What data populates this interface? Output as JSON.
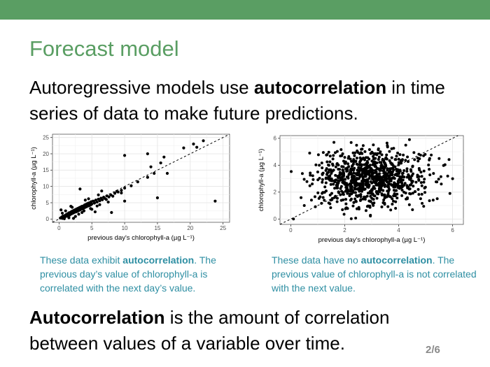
{
  "slide": {
    "title": "Forecast model",
    "intro": {
      "before": "Autoregressive models use ",
      "bold": "autocorrelation",
      "after": " in time series of data to make future predictions."
    },
    "definition": {
      "bold": "Autocorrelation",
      "rest": " is the amount of correlation between values of a variable over time."
    },
    "page_number": "2/6",
    "colors": {
      "accent": "#5a9e63",
      "caption": "#2f8fa3",
      "page_number": "#8a8a8a"
    }
  },
  "captions": {
    "left": {
      "pre": "These data exhibit ",
      "bold": "autocorrelation",
      "post": ". The previous day’s value of chlorophyll-a is correlated with the next day’s value."
    },
    "right": {
      "pre": "These data have no ",
      "bold": "autocorrelation",
      "post": ". The previous value of chlorophyll-a is not correlated with the next value."
    }
  },
  "chart_data": [
    {
      "type": "scatter",
      "xlabel": "previous day's chlorophyll-a (µg L⁻¹)",
      "ylabel": "chlorophyll-a (µg L⁻¹)",
      "xlim": [
        -1,
        26
      ],
      "ylim": [
        -1,
        26
      ],
      "xticks": [
        0,
        5,
        10,
        15,
        20,
        25
      ],
      "yticks": [
        0,
        5,
        10,
        15,
        20,
        25
      ],
      "grid": true,
      "reference_line": "y = x (dashed)",
      "points": [
        [
          0.2,
          0.3
        ],
        [
          0.4,
          0.6
        ],
        [
          0.5,
          0.2
        ],
        [
          0.6,
          0.9
        ],
        [
          0.8,
          0.5
        ],
        [
          0.9,
          1.1
        ],
        [
          1.0,
          0.8
        ],
        [
          1.1,
          1.4
        ],
        [
          1.2,
          0.9
        ],
        [
          1.3,
          1.6
        ],
        [
          1.4,
          1.1
        ],
        [
          1.5,
          1.9
        ],
        [
          1.6,
          1.2
        ],
        [
          1.7,
          2.0
        ],
        [
          1.8,
          1.5
        ],
        [
          1.9,
          2.3
        ],
        [
          2.0,
          1.7
        ],
        [
          2.1,
          2.5
        ],
        [
          2.2,
          1.9
        ],
        [
          2.3,
          2.7
        ],
        [
          2.4,
          2.1
        ],
        [
          2.5,
          2.9
        ],
        [
          2.6,
          2.2
        ],
        [
          2.7,
          3.1
        ],
        [
          2.8,
          2.4
        ],
        [
          2.9,
          3.3
        ],
        [
          3.0,
          2.6
        ],
        [
          3.1,
          3.5
        ],
        [
          3.2,
          2.8
        ],
        [
          3.3,
          3.7
        ],
        [
          3.4,
          3.0
        ],
        [
          3.5,
          3.9
        ],
        [
          3.6,
          3.2
        ],
        [
          3.7,
          4.0
        ],
        [
          3.8,
          3.4
        ],
        [
          3.9,
          4.3
        ],
        [
          4.0,
          3.6
        ],
        [
          4.1,
          4.5
        ],
        [
          4.2,
          3.8
        ],
        [
          4.3,
          4.7
        ],
        [
          4.4,
          4.0
        ],
        [
          4.5,
          4.9
        ],
        [
          4.6,
          4.1
        ],
        [
          4.7,
          5.0
        ],
        [
          4.8,
          4.3
        ],
        [
          4.9,
          5.3
        ],
        [
          5.0,
          4.6
        ],
        [
          5.2,
          5.5
        ],
        [
          5.4,
          4.9
        ],
        [
          5.6,
          5.8
        ],
        [
          5.8,
          5.2
        ],
        [
          6.0,
          6.1
        ],
        [
          6.2,
          5.6
        ],
        [
          6.4,
          6.4
        ],
        [
          6.6,
          5.9
        ],
        [
          6.8,
          6.7
        ],
        [
          7.0,
          6.3
        ],
        [
          7.3,
          7.1
        ],
        [
          7.6,
          6.8
        ],
        [
          7.9,
          7.4
        ],
        [
          8.2,
          7.0
        ],
        [
          8.5,
          7.9
        ],
        [
          9.0,
          8.3
        ],
        [
          9.5,
          8.8
        ],
        [
          10.0,
          9.5
        ],
        [
          11.0,
          10.2
        ],
        [
          12.0,
          11.4
        ],
        [
          13.5,
          12.8
        ],
        [
          14.5,
          14.0
        ],
        [
          1.0,
          2.5
        ],
        [
          2.0,
          3.6
        ],
        [
          3.0,
          1.5
        ],
        [
          4.0,
          5.8
        ],
        [
          5.0,
          3.0
        ],
        [
          6.0,
          7.4
        ],
        [
          0.5,
          1.8
        ],
        [
          1.5,
          0.4
        ],
        [
          2.5,
          0.8
        ],
        [
          3.5,
          2.0
        ],
        [
          4.5,
          6.2
        ],
        [
          0.3,
          2.8
        ],
        [
          1.8,
          3.9
        ],
        [
          3.2,
          9.2
        ],
        [
          5.5,
          2.2
        ],
        [
          8.0,
          2.0
        ],
        [
          10.0,
          5.5
        ],
        [
          6.5,
          8.6
        ],
        [
          9.5,
          8.0
        ],
        [
          7.2,
          6.0
        ],
        [
          14.0,
          16.0
        ],
        [
          15.5,
          17.2
        ],
        [
          16.0,
          19.0
        ],
        [
          16.5,
          14.0
        ],
        [
          19.0,
          21.8
        ],
        [
          20.5,
          23.0
        ],
        [
          21.0,
          22.0
        ],
        [
          22.0,
          24.0
        ],
        [
          13.5,
          20.0
        ],
        [
          15.0,
          6.5
        ],
        [
          23.8,
          5.5
        ],
        [
          10.0,
          19.5
        ],
        [
          4.8,
          3.2
        ],
        [
          6.2,
          4.4
        ],
        [
          7.5,
          5.2
        ],
        [
          2.2,
          0.2
        ],
        [
          0.8,
          0.1
        ],
        [
          3.8,
          2.5
        ],
        [
          5.8,
          4.0
        ],
        [
          8.8,
          8.5
        ]
      ]
    },
    {
      "type": "scatter",
      "xlabel": "previous day's chlorophyll-a (µg L⁻¹)",
      "ylabel": "chlorophyll-a (µg L⁻¹)",
      "xlim": [
        -0.4,
        6.4
      ],
      "ylim": [
        -0.4,
        6.2
      ],
      "xticks": [
        0,
        2,
        4,
        6
      ],
      "yticks": [
        0,
        2,
        4,
        6
      ],
      "grid": true,
      "reference_line": "y = x (dashed)",
      "cluster": {
        "n_points": 900,
        "x_mean": 3.0,
        "x_sd": 1.05,
        "y_mean": 3.0,
        "y_sd": 1.05,
        "x_min": 0,
        "x_max": 6,
        "y_min": 0,
        "y_max": 6,
        "correlation": 0
      },
      "outlier_points": [
        [
          0.1,
          0.0
        ],
        [
          0.5,
          1.0
        ],
        [
          0.7,
          4.9
        ],
        [
          1.0,
          3.5
        ],
        [
          1.2,
          1.6
        ],
        [
          5.9,
          1.9
        ],
        [
          5.5,
          4.5
        ],
        [
          1.6,
          5.7
        ],
        [
          4.4,
          5.9
        ],
        [
          6.0,
          3.0
        ]
      ]
    }
  ]
}
